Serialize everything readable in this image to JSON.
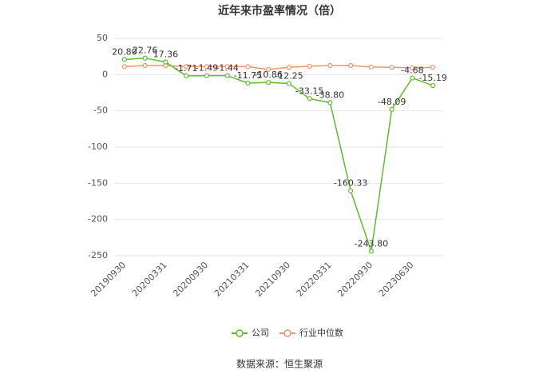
{
  "chart_data": {
    "type": "line",
    "title": "近年来市盈率情况（倍）",
    "categories": [
      "20190930",
      null,
      "20200331",
      null,
      "20200930",
      null,
      "20210331",
      null,
      "20210930",
      null,
      "20220331",
      null,
      "20220930",
      null,
      "20230630",
      null
    ],
    "series": [
      {
        "name": "公司",
        "color": "#5cbf2a",
        "values": [
          20.8,
          22.76,
          17.36,
          -1.71,
          -1.49,
          -1.44,
          -11.75,
          -10.86,
          -12.25,
          -33.15,
          -38.8,
          -160.33,
          -243.8,
          -48.09,
          -4.68,
          -15.19
        ],
        "value_labels": [
          "20.80",
          "22.76",
          "17.36",
          "-1.71",
          "-1.49",
          "-1.44",
          "-11.75",
          "-10.86",
          "-12.25",
          "-33.15",
          "-38.80",
          "-160.33",
          "-243.80",
          "-48.09",
          "-4.68",
          "-15.19"
        ]
      },
      {
        "name": "行业中位数",
        "color": "#f5936a",
        "values": [
          11,
          12.5,
          12.5,
          11,
          11,
          11,
          11,
          7,
          10,
          11.5,
          12.5,
          12.5,
          10.5,
          10,
          9,
          10
        ]
      }
    ],
    "ylim": [
      -250,
      50
    ],
    "yticks": [
      -250,
      -200,
      -150,
      -100,
      -50,
      0,
      50
    ],
    "legend": "bottom",
    "source": "数据来源：恒生聚源"
  }
}
